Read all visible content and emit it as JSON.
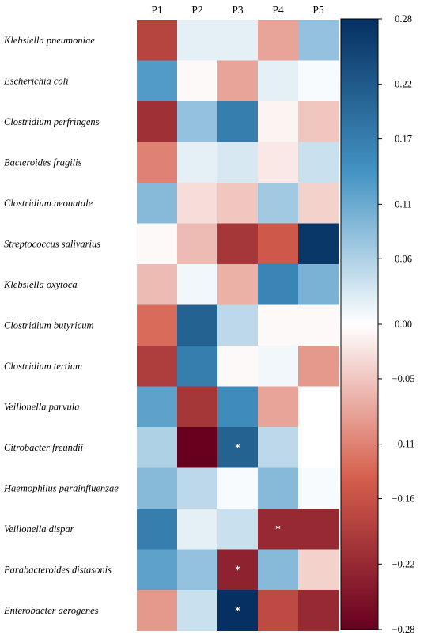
{
  "chart_data": {
    "type": "heatmap",
    "columns": [
      "P1",
      "P2",
      "P3",
      "P4",
      "P5"
    ],
    "rows": [
      "Klebsiella pneumoniae",
      "Escherichia coli",
      "Clostridium perfringens",
      "Bacteroides fragilis",
      "Clostridium neonatale",
      "Streptococcus salivarius",
      "Klebsiella oxytoca",
      "Clostridium butyricum",
      "Clostridium tertium",
      "Veillonella parvula",
      "Citrobacter freundii",
      "Haemophilus parainfluenzae",
      "Veillonella dispar",
      "Parabacteroides distasonis",
      "Enterobacter aerogenes"
    ],
    "values": [
      [
        -0.18,
        0.02,
        0.02,
        -0.08,
        0.08
      ],
      [
        0.13,
        -0.005,
        -0.08,
        0.02,
        0.005
      ],
      [
        -0.21,
        0.08,
        0.17,
        -0.01,
        -0.05
      ],
      [
        -0.11,
        0.02,
        0.03,
        -0.02,
        0.04
      ],
      [
        0.09,
        -0.03,
        -0.05,
        0.07,
        -0.04
      ],
      [
        -0.005,
        -0.06,
        -0.2,
        -0.15,
        0.27
      ],
      [
        -0.06,
        0.01,
        -0.07,
        0.16,
        0.1
      ],
      [
        -0.13,
        0.21,
        0.05,
        -0.005,
        -0.005
      ],
      [
        -0.19,
        0.17,
        -0.005,
        0.01,
        -0.09
      ],
      [
        0.12,
        -0.2,
        0.15,
        -0.08,
        0.0
      ],
      [
        0.06,
        -0.28,
        0.21,
        0.05,
        0.0
      ],
      [
        0.09,
        0.05,
        0.005,
        0.09,
        0.005
      ],
      [
        0.17,
        0.02,
        0.04,
        -0.22,
        -0.22
      ],
      [
        0.12,
        0.08,
        -0.23,
        0.09,
        -0.04
      ],
      [
        -0.09,
        0.04,
        0.28,
        -0.17,
        -0.22
      ]
    ],
    "significance": [
      [
        "",
        "",
        "",
        "",
        ""
      ],
      [
        "",
        "",
        "",
        "",
        ""
      ],
      [
        "",
        "",
        "",
        "",
        ""
      ],
      [
        "",
        "",
        "",
        "",
        ""
      ],
      [
        "",
        "",
        "",
        "",
        ""
      ],
      [
        "",
        "",
        "",
        "",
        ""
      ],
      [
        "",
        "",
        "",
        "",
        ""
      ],
      [
        "",
        "",
        "",
        "",
        ""
      ],
      [
        "",
        "",
        "",
        "",
        ""
      ],
      [
        "",
        "",
        "",
        "",
        ""
      ],
      [
        "",
        "",
        "*",
        "",
        ""
      ],
      [
        "",
        "",
        "",
        "",
        ""
      ],
      [
        "",
        "",
        "",
        "*",
        ""
      ],
      [
        "",
        "",
        "*",
        "",
        ""
      ],
      [
        "",
        "",
        "*",
        "",
        ""
      ]
    ],
    "colorbar": {
      "range": [
        -0.28,
        0.28
      ],
      "tick_values": [
        0.28,
        0.22,
        0.17,
        0.11,
        0.06,
        0.0,
        -0.05,
        -0.11,
        -0.16,
        -0.22,
        -0.28
      ],
      "tick_labels": [
        "0.28",
        "0.22",
        "0.17",
        "0.11",
        "0.06",
        "0.00",
        "−0.05",
        "−0.11",
        "−0.16",
        "−0.22",
        "−0.28"
      ]
    },
    "colormap": {
      "negative_end": "#67001f",
      "negative_mid": "#d6604d",
      "center": "#ffffff",
      "positive_mid": "#4393c3",
      "positive_end": "#053061"
    },
    "grid": false,
    "legend": "right"
  }
}
